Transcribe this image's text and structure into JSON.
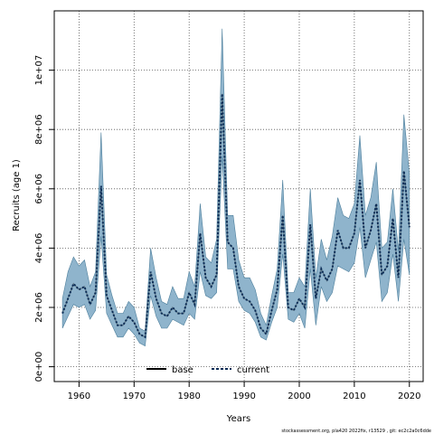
{
  "chart_data": {
    "type": "line",
    "title": "",
    "xlabel": "Years",
    "ylabel": "Recruits (age 1)",
    "xlim": [
      1955.5,
      2022.5
    ],
    "ylim": [
      -500000,
      12000000
    ],
    "x_ticks": [
      1960,
      1970,
      1980,
      1990,
      2000,
      2010,
      2020
    ],
    "y_ticks": [
      0,
      2000000,
      4000000,
      6000000,
      8000000,
      10000000
    ],
    "x_tick_labels": [
      "1960",
      "1970",
      "1980",
      "1990",
      "2000",
      "2010",
      "2020"
    ],
    "y_tick_labels": [
      "0e+00",
      "2e+06",
      "4e+06",
      "6e+06",
      "8e+06",
      "1e+07"
    ],
    "grid": true,
    "legend": {
      "position": "bottom-center",
      "entries": [
        "base",
        "current"
      ]
    },
    "colors": {
      "band": "#8fb4cc",
      "band_stroke": "#4d7f9c",
      "current": "#0a2b55",
      "base": "#000000",
      "grid": "#555555"
    },
    "x": [
      1957,
      1958,
      1959,
      1960,
      1961,
      1962,
      1963,
      1964,
      1965,
      1966,
      1967,
      1968,
      1969,
      1970,
      1971,
      1972,
      1973,
      1974,
      1975,
      1976,
      1977,
      1978,
      1979,
      1980,
      1981,
      1982,
      1983,
      1984,
      1985,
      1986,
      1987,
      1988,
      1989,
      1990,
      1991,
      1992,
      1993,
      1994,
      1995,
      1996,
      1997,
      1998,
      1999,
      2000,
      2001,
      2002,
      2003,
      2004,
      2005,
      2006,
      2007,
      2008,
      2009,
      2010,
      2011,
      2012,
      2013,
      2014,
      2015,
      2016,
      2017,
      2018,
      2019,
      2020
    ],
    "series": [
      {
        "name": "current",
        "style": "dotted",
        "values": [
          1800000,
          2300000,
          2800000,
          2600000,
          2700000,
          2100000,
          2500000,
          6100000,
          2400000,
          1900000,
          1400000,
          1400000,
          1700000,
          1500000,
          1100000,
          1000000,
          3200000,
          2300000,
          1800000,
          1700000,
          2000000,
          1800000,
          1800000,
          2500000,
          2100000,
          4500000,
          3000000,
          2700000,
          3100000,
          9200000,
          4200000,
          4000000,
          2700000,
          2300000,
          2200000,
          1900000,
          1300000,
          1100000,
          1900000,
          2600000,
          5100000,
          2000000,
          1900000,
          2300000,
          2000000,
          4800000,
          2300000,
          3300000,
          2900000,
          3300000,
          4600000,
          4000000,
          4000000,
          4500000,
          6300000,
          4000000,
          4600000,
          5500000,
          3100000,
          3400000,
          5000000,
          3000000,
          6600000,
          4700000
        ]
      },
      {
        "name": "base",
        "style": "solid",
        "values": [
          1800000,
          2300000,
          2800000,
          2600000,
          2700000,
          2100000,
          2500000,
          6100000,
          2400000,
          1900000,
          1400000,
          1400000,
          1700000,
          1500000,
          1100000,
          1000000,
          3200000,
          2300000,
          1800000,
          1700000,
          2000000,
          1800000,
          1800000,
          2500000,
          2100000,
          4500000,
          3000000,
          2700000,
          3100000,
          9200000,
          4200000,
          4000000,
          2700000,
          2300000,
          2200000,
          1900000,
          1300000,
          1100000,
          1900000,
          2600000,
          5100000,
          2000000,
          1900000,
          2300000,
          2000000,
          4800000,
          2300000,
          3300000,
          2900000,
          3300000,
          4600000,
          4000000,
          4000000,
          4500000,
          6300000,
          4000000,
          4600000,
          5500000,
          3100000,
          3400000,
          5000000,
          3000000,
          6600000,
          4700000
        ]
      }
    ],
    "upper": [
      2300000,
      3200000,
      3700000,
      3400000,
      3600000,
      2700000,
      3200000,
      7900000,
      3100000,
      2400000,
      1800000,
      1800000,
      2200000,
      2000000,
      1300000,
      1200000,
      4000000,
      3000000,
      2200000,
      2100000,
      2700000,
      2300000,
      2300000,
      3200000,
      2700000,
      5500000,
      3700000,
      3500000,
      4300000,
      11400000,
      5100000,
      5100000,
      3600000,
      3000000,
      3000000,
      2600000,
      1800000,
      1400000,
      2400000,
      3300000,
      6300000,
      2500000,
      2500000,
      3000000,
      2700000,
      6000000,
      3000000,
      4300000,
      3600000,
      4400000,
      5700000,
      5100000,
      5000000,
      5500000,
      7800000,
      5100000,
      5700000,
      6900000,
      4000000,
      4200000,
      6000000,
      3900000,
      8500000,
      6500000
    ],
    "lower": [
      1300000,
      1700000,
      2100000,
      2000000,
      2100000,
      1600000,
      1900000,
      4400000,
      1800000,
      1400000,
      1000000,
      1000000,
      1300000,
      1100000,
      800000,
      700000,
      2400000,
      1700000,
      1300000,
      1300000,
      1600000,
      1500000,
      1400000,
      1800000,
      1600000,
      3200000,
      2400000,
      2300000,
      2500000,
      7100000,
      3300000,
      3300000,
      2200000,
      1900000,
      1800000,
      1500000,
      1000000,
      900000,
      1500000,
      2000000,
      3800000,
      1600000,
      1500000,
      1800000,
      1300000,
      3300000,
      1400000,
      2700000,
      2200000,
      2500000,
      3400000,
      3300000,
      3200000,
      3500000,
      4700000,
      3000000,
      3600000,
      4200000,
      2200000,
      2500000,
      3800000,
      2200000,
      4300000,
      3100000
    ]
  },
  "footnote": "stockassessment.org, pla420  2022fix,  r13529 ,  git:  ec2c2a0c6dde"
}
